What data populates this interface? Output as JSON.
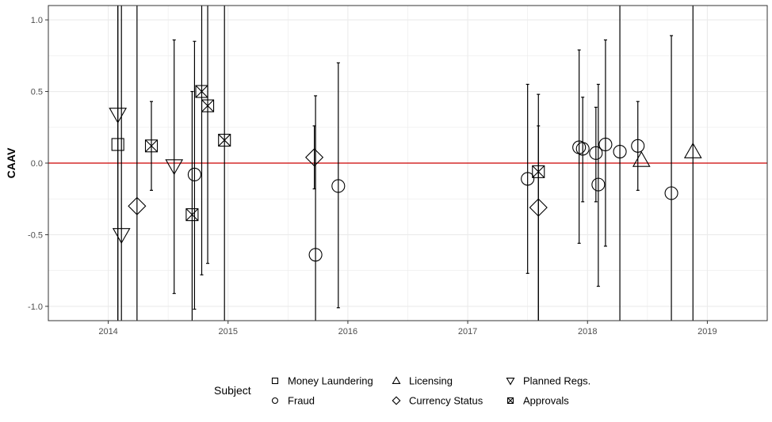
{
  "chart_data": {
    "type": "scatter",
    "title": "",
    "xlabel": "",
    "ylabel": "CAAV",
    "xlim": [
      2013.5,
      2019.5
    ],
    "ylim": [
      -1.1,
      1.1
    ],
    "x_ticks": [
      2014,
      2015,
      2016,
      2017,
      2018,
      2019
    ],
    "x_tick_labels": [
      "2014",
      "2015",
      "2016",
      "2017",
      "2018",
      "2019"
    ],
    "y_ticks": [
      -1.0,
      -0.5,
      0.0,
      0.5,
      1.0
    ],
    "y_tick_labels": [
      "-1.0",
      "-0.5",
      "0.0",
      "0.5",
      "1.0"
    ],
    "grid": true,
    "reference_line": {
      "y": 0,
      "color": "#cc0000"
    },
    "legend": {
      "title": "Subject",
      "placement": "bottom",
      "entries": [
        {
          "label": "Money Laundering",
          "shape": "square"
        },
        {
          "label": "Fraud",
          "shape": "circle"
        },
        {
          "label": "Licensing",
          "shape": "triangle-up"
        },
        {
          "label": "Currency Status",
          "shape": "diamond"
        },
        {
          "label": "Planned Regs.",
          "shape": "triangle-down"
        },
        {
          "label": "Approvals",
          "shape": "square-x"
        }
      ]
    },
    "series": [
      {
        "name": "Money Laundering",
        "shape": "square",
        "points": [
          {
            "x": 2014.08,
            "y": 0.13,
            "ymin": -1.1,
            "ymax": 1.1
          }
        ]
      },
      {
        "name": "Fraud",
        "shape": "circle",
        "points": [
          {
            "x": 2014.72,
            "y": -0.08,
            "ymin": -1.02,
            "ymax": 0.85
          },
          {
            "x": 2015.73,
            "y": -0.64,
            "ymin": -1.1,
            "ymax": 0.47
          },
          {
            "x": 2015.92,
            "y": -0.16,
            "ymin": -1.01,
            "ymax": 0.7
          },
          {
            "x": 2017.5,
            "y": -0.11,
            "ymin": -0.77,
            "ymax": 0.55
          },
          {
            "x": 2017.93,
            "y": 0.11,
            "ymin": -0.56,
            "ymax": 0.79
          },
          {
            "x": 2017.96,
            "y": 0.1,
            "ymin": -0.27,
            "ymax": 0.46
          },
          {
            "x": 2018.07,
            "y": 0.07,
            "ymin": -0.27,
            "ymax": 0.39
          },
          {
            "x": 2018.09,
            "y": -0.15,
            "ymin": -0.86,
            "ymax": 0.55
          },
          {
            "x": 2018.15,
            "y": 0.13,
            "ymin": -0.58,
            "ymax": 0.86
          },
          {
            "x": 2018.27,
            "y": 0.08,
            "ymin": -1.1,
            "ymax": 1.1
          },
          {
            "x": 2018.42,
            "y": 0.12,
            "ymin": -0.19,
            "ymax": 0.43
          },
          {
            "x": 2018.7,
            "y": -0.21,
            "ymin": -1.1,
            "ymax": 0.89
          }
        ]
      },
      {
        "name": "Licensing",
        "shape": "triangle-up",
        "points": [
          {
            "x": 2018.45,
            "y": 0.02,
            "ymin": 0.02,
            "ymax": 0.02
          },
          {
            "x": 2018.88,
            "y": 0.08,
            "ymin": -1.1,
            "ymax": 1.1
          }
        ]
      },
      {
        "name": "Currency Status",
        "shape": "diamond",
        "points": [
          {
            "x": 2014.24,
            "y": -0.3,
            "ymin": -1.1,
            "ymax": 1.1
          },
          {
            "x": 2015.72,
            "y": 0.04,
            "ymin": -0.18,
            "ymax": 0.26
          },
          {
            "x": 2017.59,
            "y": -0.31,
            "ymin": -1.1,
            "ymax": 0.26
          }
        ]
      },
      {
        "name": "Planned Regs.",
        "shape": "triangle-down",
        "points": [
          {
            "x": 2014.08,
            "y": 0.34,
            "ymin": -1.1,
            "ymax": 1.1
          },
          {
            "x": 2014.11,
            "y": -0.5,
            "ymin": -1.1,
            "ymax": 1.1
          },
          {
            "x": 2014.55,
            "y": -0.02,
            "ymin": -0.91,
            "ymax": 0.86
          }
        ]
      },
      {
        "name": "Approvals",
        "shape": "square-x",
        "points": [
          {
            "x": 2014.36,
            "y": 0.12,
            "ymin": -0.19,
            "ymax": 0.43
          },
          {
            "x": 2014.7,
            "y": -0.36,
            "ymin": -1.1,
            "ymax": 0.5
          },
          {
            "x": 2014.78,
            "y": 0.5,
            "ymin": -0.78,
            "ymax": 1.1
          },
          {
            "x": 2014.83,
            "y": 0.4,
            "ymin": -0.7,
            "ymax": 1.1
          },
          {
            "x": 2014.97,
            "y": 0.16,
            "ymin": -1.1,
            "ymax": 1.1
          },
          {
            "x": 2017.59,
            "y": -0.06,
            "ymin": -1.1,
            "ymax": 0.48
          }
        ]
      }
    ]
  }
}
